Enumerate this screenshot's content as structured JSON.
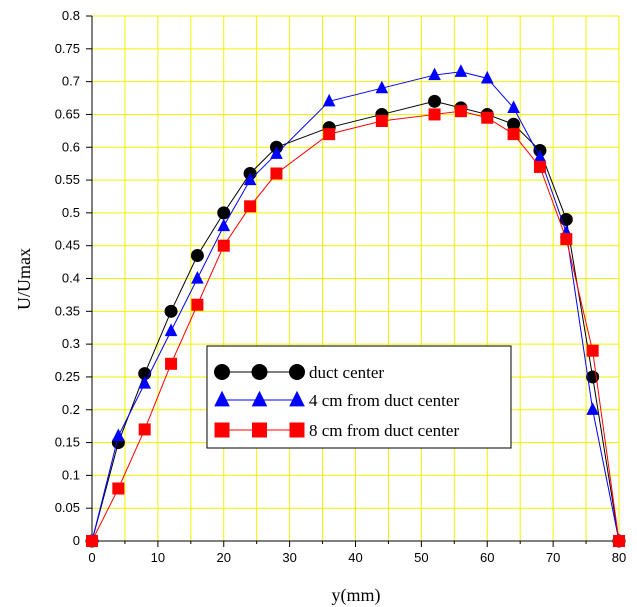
{
  "chart_data": {
    "type": "line",
    "xlabel": "y(mm)",
    "ylabel": "U/Umax",
    "xlim": [
      0,
      80
    ],
    "ylim": [
      0,
      0.8
    ],
    "x_ticks": [
      0,
      10,
      20,
      30,
      40,
      50,
      60,
      70,
      80
    ],
    "y_ticks": [
      0,
      0.05,
      0.1,
      0.15,
      0.2,
      0.25,
      0.3,
      0.35,
      0.4,
      0.45,
      0.5,
      0.55,
      0.6,
      0.65,
      0.7,
      0.75,
      0.8
    ],
    "x_minor_step": 5,
    "grid": true,
    "grid_color": "#f2f200",
    "plot_background": "#ffffff",
    "legend_placement": "center-left",
    "series": [
      {
        "name": "duct center",
        "color": "#000000",
        "marker": "circle",
        "x": [
          0,
          4,
          8,
          12,
          16,
          20,
          24,
          28,
          36,
          44,
          52,
          56,
          60,
          64,
          68,
          72,
          76,
          80
        ],
        "y": [
          0,
          0.15,
          0.255,
          0.35,
          0.435,
          0.5,
          0.56,
          0.6,
          0.63,
          0.65,
          0.67,
          0.66,
          0.65,
          0.635,
          0.595,
          0.49,
          0.25,
          0
        ]
      },
      {
        "name": "4 cm from duct center",
        "color": "#0000ff",
        "marker": "triangle",
        "x": [
          0,
          4,
          8,
          12,
          16,
          20,
          24,
          28,
          36,
          44,
          52,
          56,
          60,
          64,
          68,
          72,
          76,
          80
        ],
        "y": [
          0,
          0.16,
          0.24,
          0.32,
          0.4,
          0.48,
          0.55,
          0.59,
          0.67,
          0.69,
          0.71,
          0.715,
          0.705,
          0.66,
          0.585,
          0.47,
          0.2,
          0
        ]
      },
      {
        "name": "8 cm from duct center",
        "color": "#ff0000",
        "marker": "square",
        "x": [
          0,
          4,
          8,
          12,
          16,
          20,
          24,
          28,
          36,
          44,
          52,
          56,
          60,
          64,
          68,
          72,
          76,
          80
        ],
        "y": [
          0,
          0.08,
          0.17,
          0.27,
          0.36,
          0.45,
          0.51,
          0.56,
          0.62,
          0.64,
          0.65,
          0.655,
          0.645,
          0.62,
          0.57,
          0.46,
          0.29,
          0
        ]
      }
    ]
  }
}
